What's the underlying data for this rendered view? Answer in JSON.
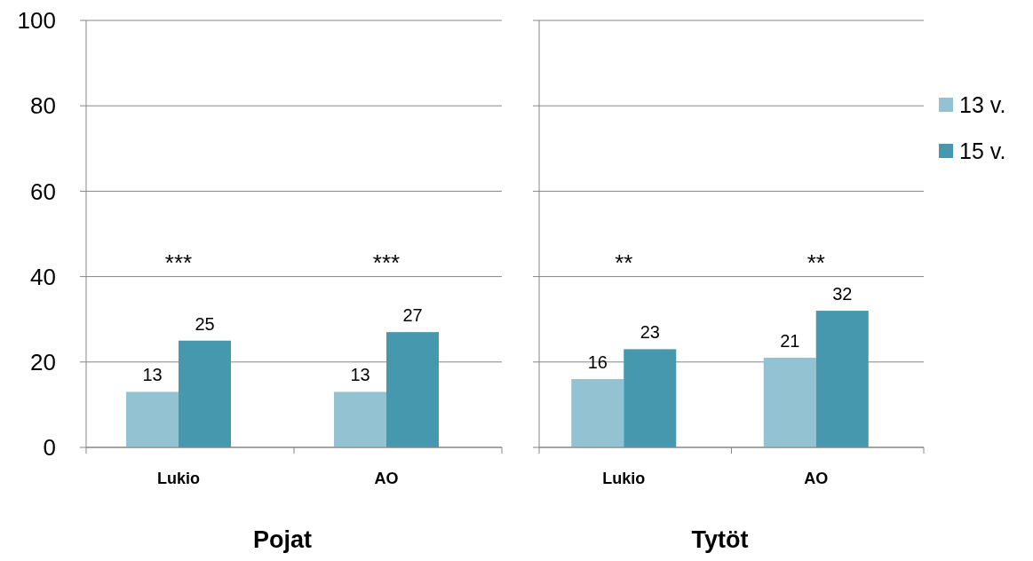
{
  "chart_data": [
    {
      "type": "bar",
      "xlabel": "Pojat",
      "categories": [
        "Lukio",
        "AO"
      ],
      "series": [
        {
          "color": "#93c3d3",
          "values": [
            13,
            13
          ]
        },
        {
          "color": "#4598ae",
          "values": [
            25,
            27
          ]
        }
      ],
      "ylim": [
        0,
        100
      ],
      "yticks": [
        0,
        20,
        40,
        60,
        80,
        100
      ],
      "grid": "y",
      "data_labels": true,
      "legend": false,
      "annotations": [
        "***",
        "***"
      ]
    },
    {
      "type": "bar",
      "xlabel": "Tytöt",
      "categories": [
        "Lukio",
        "AO"
      ],
      "series": [
        {
          "name": "13 v.",
          "color": "#93c3d3",
          "values": [
            16,
            21
          ]
        },
        {
          "name": "15 v.",
          "color": "#4598ae",
          "values": [
            23,
            32
          ]
        }
      ],
      "ylim": [
        0,
        100
      ],
      "yticks": [
        0,
        20,
        40,
        60,
        80,
        100
      ],
      "grid": "y",
      "data_labels": true,
      "legend": "right",
      "tick_labels": "x",
      "annotations": [
        "**",
        "**"
      ]
    }
  ]
}
